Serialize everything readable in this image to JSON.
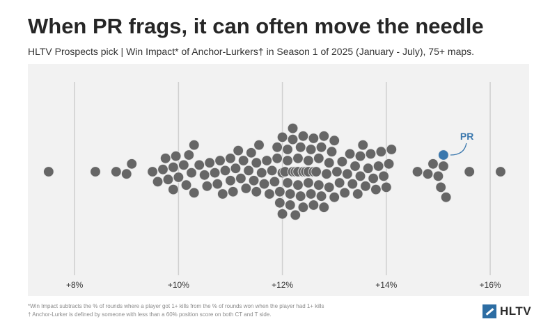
{
  "header": {
    "title": "When PR frags, it can often move the needle",
    "subtitle": "HLTV Prospects pick | Win Impact* of Anchor-Lurkers† in Season 1 of 2025 (January - July), 75+ maps."
  },
  "chart_data": {
    "type": "scatter",
    "subtype": "beeswarm",
    "xlim": [
      7.1,
      16.75
    ],
    "x_ticks": [
      8,
      10,
      12,
      14,
      16
    ],
    "x_tick_labels": [
      "+8%",
      "+10%",
      "+12%",
      "+14%",
      "+16%"
    ],
    "grid": "vertical",
    "highlight": {
      "label": "PR",
      "value": 15.1
    },
    "values": [
      7.5,
      8.4,
      8.8,
      9.0,
      9.1,
      9.5,
      9.6,
      9.7,
      9.75,
      9.8,
      9.9,
      9.95,
      10.0,
      10.1,
      10.15,
      10.2,
      10.25,
      10.3,
      10.4,
      10.5,
      10.55,
      10.6,
      10.7,
      10.75,
      10.8,
      10.85,
      10.9,
      11.0,
      11.05,
      11.1,
      11.15,
      11.2,
      11.25,
      11.3,
      11.35,
      11.4,
      11.45,
      11.5,
      11.55,
      11.6,
      11.65,
      11.7,
      11.75,
      11.8,
      11.85,
      11.9,
      11.95,
      12.0,
      12.05,
      12.1,
      12.15,
      12.2,
      12.25,
      12.3,
      12.35,
      12.4,
      12.45,
      12.5,
      12.55,
      12.6,
      12.65,
      12.7,
      12.75,
      12.8,
      12.85,
      12.9,
      12.95,
      13.0,
      13.05,
      13.1,
      13.15,
      13.2,
      13.25,
      13.3,
      13.35,
      13.4,
      13.45,
      13.5,
      13.55,
      13.6,
      13.65,
      13.7,
      13.75,
      13.8,
      13.85,
      13.9,
      13.95,
      14.0,
      14.05,
      14.1,
      14.6,
      14.8,
      14.9,
      15.0,
      15.05,
      15.1,
      15.15,
      15.6,
      16.2,
      11.9,
      12.0,
      12.1,
      12.2,
      12.3,
      12.4,
      12.5,
      12.6,
      12.7,
      12.8,
      12.9,
      12.05,
      12.15,
      12.25,
      12.35,
      12.45,
      12.55,
      12.65,
      12.75,
      11.95,
      12.1,
      12.2,
      12.3,
      12.4,
      12.5,
      12.6,
      12.2,
      12.3,
      12.4,
      11.0,
      11.5,
      12.0,
      12.5,
      13.0,
      13.5,
      9.9,
      10.3
    ]
  },
  "footnotes": {
    "line1": "*Win Impact subtracts the % of rounds where a player got 1+ kills from the % of rounds won when the player had 1+ kills",
    "line2": "† Anchor-Lurker is defined by someone with less than a 60% position score on both CT and T side."
  },
  "logo": {
    "text": "HLTV"
  },
  "colors": {
    "dot": "#666666",
    "dot_stroke": "#e6e6e6",
    "highlight": "#3a77ad",
    "grid": "#cfcfcf",
    "plot_bg": "#f2f2f2",
    "tick_label": "#333333"
  }
}
